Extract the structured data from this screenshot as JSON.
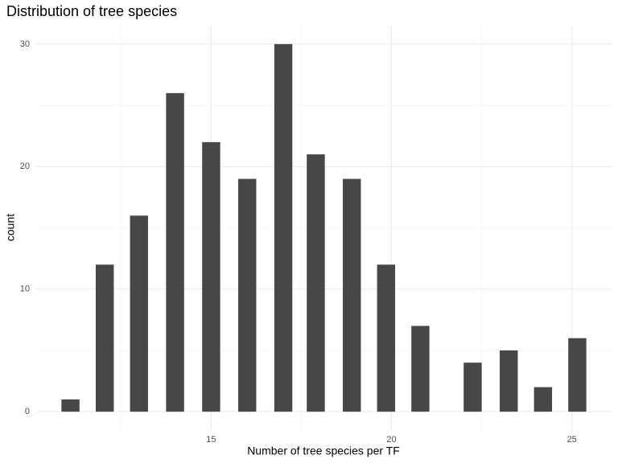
{
  "chart_data": {
    "type": "bar",
    "title": "Distribution of tree species",
    "x_label": "Number of tree species per TF",
    "y_label": "count",
    "x": [
      11.1,
      12.05,
      13.0,
      14.0,
      15.0,
      16.0,
      17.0,
      17.9,
      18.9,
      19.85,
      20.8,
      22.25,
      23.25,
      24.2,
      25.15
    ],
    "values": [
      1,
      12,
      16,
      26,
      22,
      19,
      30,
      21,
      19,
      12,
      7,
      4,
      5,
      2,
      6
    ],
    "color": "#474747",
    "xlim": [
      10.15,
      26.1
    ],
    "ylim": [
      -1.5,
      31.5
    ],
    "xticks": [
      15,
      20,
      25
    ],
    "yticks": [
      0,
      10,
      20,
      30
    ],
    "xminor": [
      12.5,
      17.5,
      22.5
    ],
    "yminor": [
      5,
      15,
      25
    ],
    "grid": true
  }
}
